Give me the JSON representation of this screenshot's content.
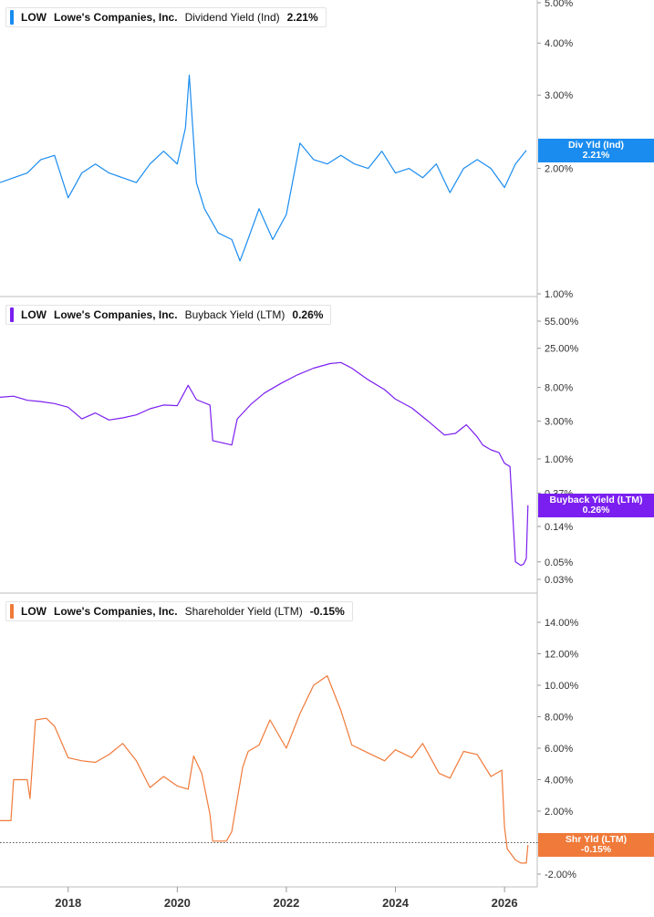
{
  "chart_data": [
    {
      "type": "line",
      "panel": "dividend",
      "ticker": "LOW",
      "company": "Lowe's Companies, Inc.",
      "metric": "Dividend Yield (Ind)",
      "value_label": "2.21%",
      "flag_title": "Div Yld (Ind)",
      "flag_value": "2.21%",
      "color": "#1a8cf0",
      "scale": "log",
      "ylim": [
        1,
        5
      ],
      "yticks": [
        5,
        4,
        3,
        2,
        1
      ],
      "ytick_labels": [
        "5.00%",
        "4.00%",
        "3.00%",
        "2.00%",
        "1.00%"
      ],
      "x": [
        2016.75,
        2017.0,
        2017.25,
        2017.5,
        2017.75,
        2018.0,
        2018.25,
        2018.5,
        2018.75,
        2019.0,
        2019.25,
        2019.5,
        2019.75,
        2020.0,
        2020.15,
        2020.22,
        2020.35,
        2020.5,
        2020.75,
        2021.0,
        2021.15,
        2021.25,
        2021.5,
        2021.75,
        2022.0,
        2022.25,
        2022.5,
        2022.75,
        2023.0,
        2023.25,
        2023.5,
        2023.75,
        2024.0,
        2024.25,
        2024.5,
        2024.75,
        2025.0,
        2025.25,
        2025.5,
        2025.75,
        2026.0,
        2026.2,
        2026.4
      ],
      "values": [
        1.85,
        1.9,
        1.95,
        2.1,
        2.15,
        1.7,
        1.95,
        2.05,
        1.95,
        1.9,
        1.85,
        2.05,
        2.2,
        2.05,
        2.5,
        3.35,
        1.85,
        1.6,
        1.4,
        1.35,
        1.2,
        1.3,
        1.6,
        1.35,
        1.55,
        2.3,
        2.1,
        2.05,
        2.15,
        2.05,
        2.0,
        2.2,
        1.95,
        2.0,
        1.9,
        2.05,
        1.75,
        2.0,
        2.1,
        2.0,
        1.8,
        2.05,
        2.21
      ]
    },
    {
      "type": "line",
      "panel": "buyback",
      "ticker": "LOW",
      "company": "Lowe's Companies, Inc.",
      "metric": "Buyback Yield (LTM)",
      "value_label": "0.26%",
      "flag_title": "Buyback Yield (LTM)",
      "flag_value": "0.26%",
      "color": "#7b1ff0",
      "scale": "log",
      "ylim": [
        0.03,
        55
      ],
      "yticks": [
        55,
        25,
        8,
        3,
        1,
        0.37,
        0.14,
        0.05,
        0.03
      ],
      "ytick_labels": [
        "55.00%",
        "25.00%",
        "8.00%",
        "3.00%",
        "1.00%",
        "0.37%",
        "0.14%",
        "0.05%",
        "0.03%"
      ],
      "x": [
        2016.75,
        2017.0,
        2017.25,
        2017.5,
        2017.75,
        2018.0,
        2018.25,
        2018.5,
        2018.75,
        2019.0,
        2019.25,
        2019.5,
        2019.75,
        2020.0,
        2020.2,
        2020.35,
        2020.6,
        2020.65,
        2021.0,
        2021.1,
        2021.35,
        2021.6,
        2021.9,
        2022.2,
        2022.5,
        2022.8,
        2023.0,
        2023.2,
        2023.5,
        2023.8,
        2024.0,
        2024.3,
        2024.6,
        2024.9,
        2025.1,
        2025.3,
        2025.5,
        2025.6,
        2025.75,
        2025.9,
        2026.0,
        2026.1,
        2026.2,
        2026.3,
        2026.35,
        2026.4,
        2026.43
      ],
      "values": [
        6,
        6.2,
        5.5,
        5.3,
        5,
        4.5,
        3.2,
        3.8,
        3.1,
        3.3,
        3.6,
        4.3,
        4.8,
        4.7,
        8.5,
        5.6,
        4.8,
        1.7,
        1.5,
        3.2,
        4.9,
        6.8,
        9,
        11.5,
        14,
        16,
        16.5,
        14,
        10,
        7.5,
        5.7,
        4.4,
        3,
        2,
        2.1,
        2.7,
        1.9,
        1.5,
        1.3,
        1.2,
        0.88,
        0.8,
        0.05,
        0.045,
        0.047,
        0.055,
        0.26
      ]
    },
    {
      "type": "line",
      "panel": "shareholder",
      "ticker": "LOW",
      "company": "Lowe's Companies, Inc.",
      "metric": "Shareholder Yield (LTM)",
      "value_label": "-0.15%",
      "flag_title": "Shr Yld (LTM)",
      "flag_value": "-0.15%",
      "color": "#f07a3a",
      "scale": "linear",
      "ylim": [
        -2.6,
        15.5
      ],
      "yticks": [
        14,
        12,
        10,
        8,
        6,
        4,
        2,
        0,
        -2
      ],
      "ytick_labels": [
        "14.00%",
        "12.00%",
        "10.00%",
        "8.00%",
        "6.00%",
        "4.00%",
        "2.00%",
        "0.00%",
        "-2.00%"
      ],
      "x": [
        2016.75,
        2016.95,
        2017.0,
        2017.25,
        2017.3,
        2017.4,
        2017.6,
        2017.75,
        2018.0,
        2018.25,
        2018.5,
        2018.75,
        2019.0,
        2019.25,
        2019.5,
        2019.75,
        2020.0,
        2020.2,
        2020.3,
        2020.45,
        2020.6,
        2020.65,
        2020.9,
        2021.0,
        2021.2,
        2021.3,
        2021.5,
        2021.7,
        2022.0,
        2022.25,
        2022.5,
        2022.75,
        2023.0,
        2023.2,
        2023.5,
        2023.8,
        2024.0,
        2024.3,
        2024.5,
        2024.8,
        2025.0,
        2025.25,
        2025.5,
        2025.75,
        2025.95,
        2026.0,
        2026.05,
        2026.2,
        2026.3,
        2026.4,
        2026.43
      ],
      "values": [
        1.4,
        1.4,
        4,
        4,
        2.8,
        7.8,
        7.9,
        7.4,
        5.4,
        5.2,
        5.1,
        5.6,
        6.3,
        5.2,
        3.5,
        4.2,
        3.6,
        3.4,
        5.5,
        4.4,
        1.8,
        0.1,
        0.1,
        0.7,
        4.8,
        5.8,
        6.2,
        7.8,
        6.0,
        8.2,
        10,
        10.6,
        8.4,
        6.2,
        5.7,
        5.2,
        5.9,
        5.4,
        6.3,
        4.4,
        4.1,
        5.8,
        5.6,
        4.2,
        4.6,
        1.0,
        -0.4,
        -1.1,
        -1.3,
        -1.3,
        -0.15
      ]
    }
  ],
  "x_axis": {
    "ticks": [
      2018,
      2020,
      2022,
      2024,
      2026
    ],
    "tick_labels": [
      "2018",
      "2020",
      "2022",
      "2024",
      "2026"
    ]
  }
}
